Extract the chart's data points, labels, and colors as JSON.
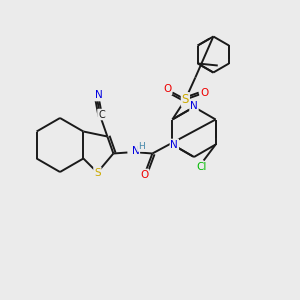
{
  "background_color": "#ebebeb",
  "bond_color": "#1a1a1a",
  "atom_colors": {
    "N": "#0000e0",
    "S": "#ccaa00",
    "O": "#ee0000",
    "Cl": "#00bb00",
    "C": "#1a1a1a",
    "H": "#4488aa"
  },
  "figsize": [
    3.0,
    3.0
  ],
  "dpi": 100
}
